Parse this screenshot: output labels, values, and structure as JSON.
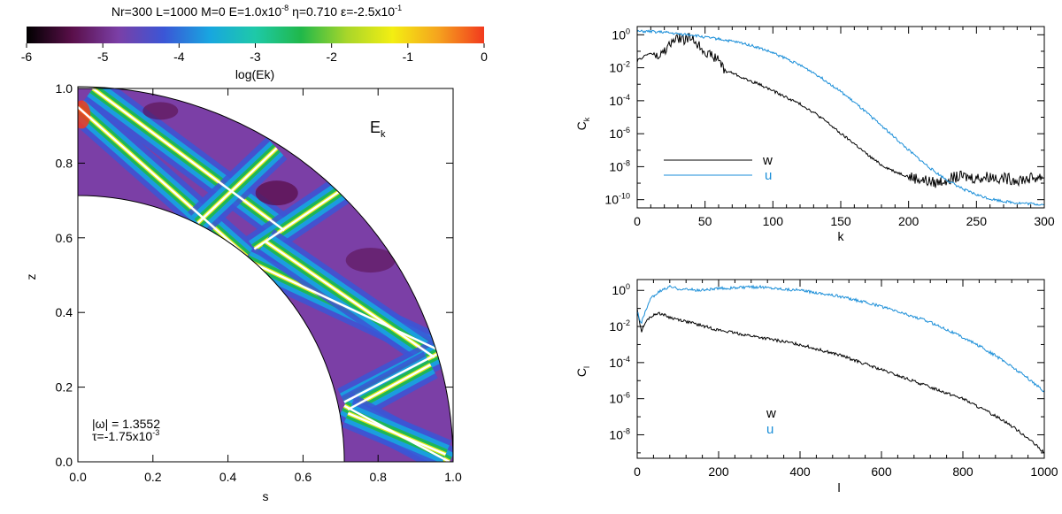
{
  "colors": {
    "colormap": [
      "#000000",
      "#5a0f4a",
      "#7b3fa6",
      "#3b56d6",
      "#18a6e0",
      "#1ec9a8",
      "#20b84a",
      "#a8d62a",
      "#f3ee12",
      "#f5a31e",
      "#f23a1e"
    ],
    "series_w": "#000000",
    "series_u": "#1a8ed8",
    "ridge": "#ffffff"
  },
  "chart_data": [
    {
      "type": "heatmap",
      "title": "Nr=300 L=1000 M=0 E=1.0x10",
      "title_E_exp": "-8",
      "title_eta": " η=0.710 ε=-2.5x10",
      "title_eps_exp": "-1",
      "colorbar": {
        "label": "log(Ek)",
        "range": [
          -6,
          0
        ],
        "ticks": [
          "-6",
          "-5",
          "-4",
          "-3",
          "-2",
          "-1",
          "0"
        ]
      },
      "xlabel": "s",
      "ylabel": "z",
      "xlim": [
        0.0,
        1.0
      ],
      "ylim": [
        0.0,
        1.0
      ],
      "xticks": [
        "0.0",
        "0.2",
        "0.4",
        "0.6",
        "0.8",
        "1.0"
      ],
      "yticks": [
        "0.0",
        "0.2",
        "0.4",
        "0.6",
        "0.8",
        "1.0"
      ],
      "inner_radius": 0.71,
      "outer_radius": 1.0,
      "panel_label": "E",
      "panel_label_sub": "k",
      "annotation_omega": "|ω| = 1.3552",
      "annotation_tau": "τ=-1.75x10",
      "annotation_tau_exp": "-3",
      "ridges": [
        [
          [
            0.0,
            0.95
          ],
          [
            0.45,
            0.55
          ]
        ],
        [
          [
            0.04,
            1.0
          ],
          [
            0.55,
            0.62
          ]
        ],
        [
          [
            0.32,
            0.64
          ],
          [
            0.53,
            0.84
          ]
        ],
        [
          [
            0.47,
            0.57
          ],
          [
            0.72,
            0.74
          ]
        ],
        [
          [
            0.45,
            0.54
          ],
          [
            0.96,
            0.3
          ]
        ],
        [
          [
            0.5,
            0.59
          ],
          [
            0.95,
            0.28
          ]
        ],
        [
          [
            0.71,
            0.16
          ],
          [
            0.96,
            0.29
          ]
        ],
        [
          [
            0.72,
            0.14
          ],
          [
            0.94,
            0.26
          ]
        ],
        [
          [
            0.71,
            0.15
          ],
          [
            0.99,
            0.0
          ]
        ],
        [
          [
            0.72,
            0.13
          ],
          [
            0.98,
            0.02
          ]
        ]
      ]
    },
    {
      "type": "line",
      "xlabel": "k",
      "ylabel": "C",
      "ylabel_sub": "k",
      "xlim": [
        0,
        300
      ],
      "ylim_log10": [
        -10.5,
        0.5
      ],
      "xticks": [
        "0",
        "50",
        "100",
        "150",
        "200",
        "250",
        "300"
      ],
      "yticks": [
        {
          "base": "10",
          "exp": "0"
        },
        {
          "base": "10",
          "exp": "-2"
        },
        {
          "base": "10",
          "exp": "-4"
        },
        {
          "base": "10",
          "exp": "-6"
        },
        {
          "base": "10",
          "exp": "-8"
        },
        {
          "base": "10",
          "exp": "-10"
        }
      ],
      "ytick_values": [
        0,
        -2,
        -4,
        -6,
        -8,
        -10
      ],
      "series": [
        {
          "name": "w",
          "x": [
            0,
            5,
            10,
            15,
            20,
            25,
            30,
            35,
            40,
            45,
            50,
            55,
            60,
            65,
            70,
            75,
            80,
            90,
            100,
            110,
            120,
            130,
            140,
            150,
            160,
            170,
            180,
            190,
            200,
            210,
            220,
            230,
            240,
            250,
            260,
            270,
            280,
            290,
            300
          ],
          "log10": [
            -1.6,
            -1.3,
            -1.1,
            -1.4,
            -1.0,
            -0.5,
            -0.2,
            -0.3,
            -0.15,
            -0.6,
            -1.0,
            -1.3,
            -1.5,
            -2.2,
            -2.3,
            -2.5,
            -2.7,
            -3.0,
            -3.4,
            -3.8,
            -4.2,
            -4.7,
            -5.3,
            -6.0,
            -6.6,
            -7.3,
            -7.9,
            -8.3,
            -8.6,
            -8.8,
            -9.0,
            -8.7,
            -8.6,
            -8.7,
            -8.6,
            -8.7,
            -8.8,
            -8.7,
            -8.6
          ],
          "noise_from_x": 200
        },
        {
          "name": "u",
          "x": [
            0,
            10,
            20,
            30,
            40,
            50,
            60,
            70,
            80,
            90,
            100,
            110,
            120,
            130,
            140,
            150,
            160,
            170,
            180,
            190,
            200,
            210,
            220,
            230,
            240,
            250,
            260,
            270,
            280,
            290,
            300
          ],
          "log10": [
            0.2,
            0.2,
            0.15,
            0.05,
            0.0,
            -0.15,
            -0.25,
            -0.4,
            -0.55,
            -0.8,
            -1.1,
            -1.45,
            -1.85,
            -2.3,
            -2.85,
            -3.45,
            -4.1,
            -4.8,
            -5.5,
            -6.25,
            -7.0,
            -7.7,
            -8.35,
            -8.9,
            -9.35,
            -9.7,
            -9.95,
            -10.1,
            -10.2,
            -10.25,
            -10.3
          ]
        }
      ],
      "legend": {
        "w": "w",
        "u": "u"
      }
    },
    {
      "type": "line",
      "xlabel": "l",
      "ylabel": "C",
      "ylabel_sub": "l",
      "xlim": [
        0,
        1000
      ],
      "ylim_log10": [
        -9.3,
        0.6
      ],
      "xticks": [
        "0",
        "200",
        "400",
        "600",
        "800",
        "1000"
      ],
      "yticks": [
        {
          "base": "10",
          "exp": "0"
        },
        {
          "base": "10",
          "exp": "-2"
        },
        {
          "base": "10",
          "exp": "-4"
        },
        {
          "base": "10",
          "exp": "-6"
        },
        {
          "base": "10",
          "exp": "-8"
        }
      ],
      "ytick_values": [
        0,
        -2,
        -4,
        -6,
        -8
      ],
      "series": [
        {
          "name": "w",
          "x": [
            0,
            10,
            20,
            30,
            40,
            50,
            60,
            80,
            100,
            150,
            200,
            250,
            300,
            350,
            400,
            450,
            500,
            550,
            600,
            650,
            700,
            750,
            800,
            850,
            900,
            950,
            1000
          ],
          "log10": [
            -1.0,
            -2.3,
            -1.8,
            -1.5,
            -1.4,
            -1.25,
            -1.3,
            -1.5,
            -1.6,
            -1.9,
            -2.2,
            -2.4,
            -2.6,
            -2.8,
            -3.0,
            -3.3,
            -3.6,
            -4.0,
            -4.4,
            -4.8,
            -5.2,
            -5.6,
            -6.0,
            -6.6,
            -7.2,
            -8.0,
            -9.0
          ]
        },
        {
          "name": "u",
          "x": [
            0,
            10,
            20,
            30,
            40,
            60,
            80,
            100,
            150,
            200,
            250,
            300,
            350,
            400,
            450,
            500,
            550,
            600,
            650,
            700,
            750,
            800,
            850,
            900,
            950,
            1000
          ],
          "log10": [
            -1.2,
            -1.8,
            -1.2,
            -0.6,
            -0.3,
            0.0,
            0.2,
            0.1,
            0.0,
            0.1,
            0.15,
            0.2,
            0.1,
            0.0,
            -0.15,
            -0.35,
            -0.6,
            -0.9,
            -1.25,
            -1.6,
            -2.05,
            -2.6,
            -3.2,
            -3.9,
            -4.7,
            -5.6
          ]
        }
      ],
      "legend": {
        "w": "w",
        "u": "u"
      }
    }
  ]
}
